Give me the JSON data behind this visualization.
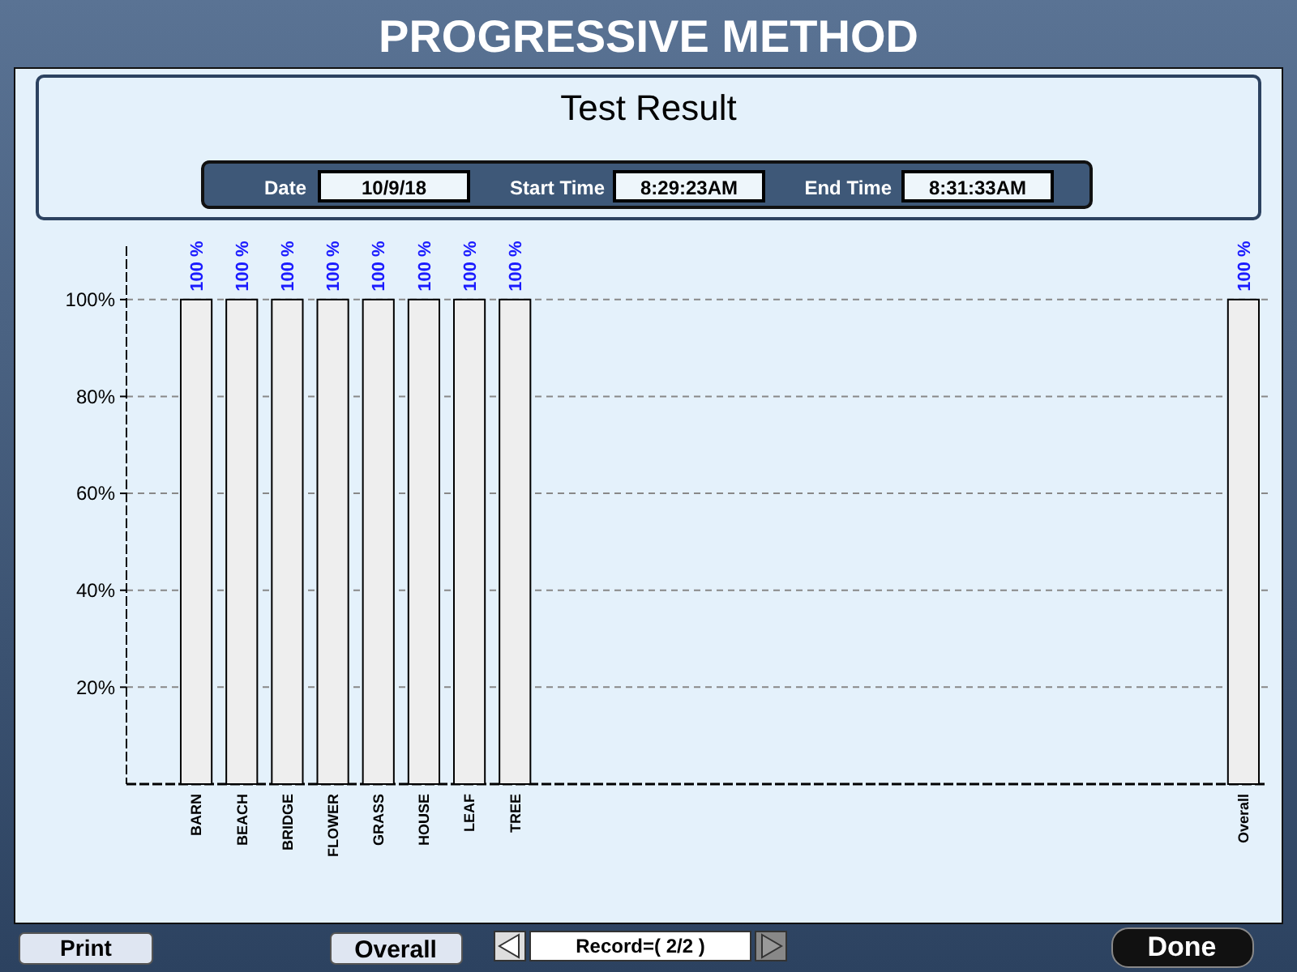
{
  "chart_data": {
    "type": "bar",
    "title": "PROGRESSIVE METHOD",
    "subtitle": "Test Result",
    "categories": [
      "BARN",
      "BEACH",
      "BRIDGE",
      "FLOWER",
      "GRASS",
      "HOUSE",
      "LEAF",
      "TREE",
      null,
      null,
      null,
      null,
      null,
      null,
      null,
      null,
      null,
      null,
      null,
      null,
      null,
      null,
      null,
      "Overall"
    ],
    "values": [
      100,
      100,
      100,
      100,
      100,
      100,
      100,
      100,
      null,
      null,
      null,
      null,
      null,
      null,
      null,
      null,
      null,
      null,
      null,
      null,
      null,
      null,
      null,
      100
    ],
    "value_labels": [
      "100 %",
      "100 %",
      "100 %",
      "100 %",
      "100 %",
      "100 %",
      "100 %",
      "100 %",
      null,
      null,
      null,
      null,
      null,
      null,
      null,
      null,
      null,
      null,
      null,
      null,
      null,
      null,
      null,
      "100 %"
    ],
    "color": "#eeeeee",
    "ylim": [
      0,
      111
    ],
    "yticks": [
      {
        "value": 20,
        "label": "20%"
      },
      {
        "value": 40,
        "label": "40%"
      },
      {
        "value": 60,
        "label": "60%"
      },
      {
        "value": 80,
        "label": "80%"
      },
      {
        "value": 100,
        "label": "100%"
      }
    ],
    "grid": "y",
    "annotations": [
      "Date",
      "10/9/18",
      "Start Time",
      "8:29:23AM",
      "End Time",
      "8:31:33AM",
      "Print",
      "Overall",
      "Record=( 2/2 )",
      "Done"
    ]
  }
}
